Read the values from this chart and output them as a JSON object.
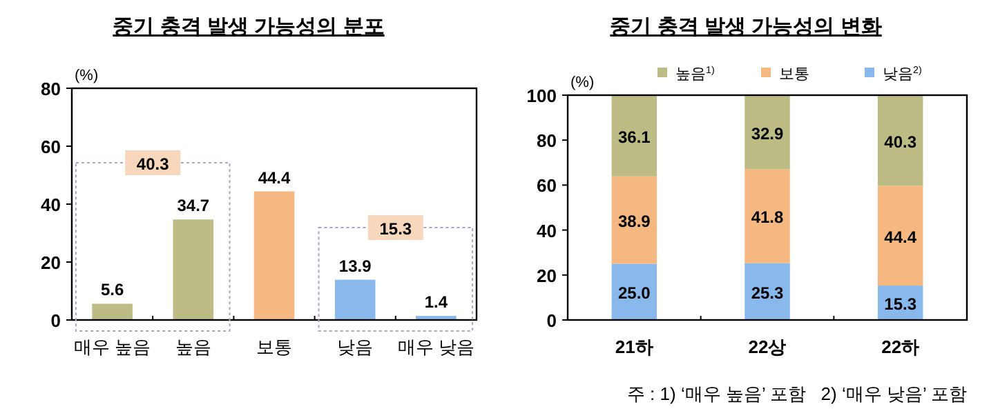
{
  "chart_data": [
    {
      "type": "bar",
      "title": "중기 충격 발생 가능성의 분포",
      "ylabel": "(%)",
      "categories": [
        "매우 높음",
        "높음",
        "보통",
        "낮음",
        "매우 낮음"
      ],
      "values": [
        5.6,
        34.7,
        44.4,
        13.9,
        1.4
      ],
      "colors": [
        "#bcbc84",
        "#bcbc84",
        "#f4b880",
        "#88b8ec",
        "#88b8ec"
      ],
      "ylim": [
        0,
        80
      ],
      "yticks": [
        0,
        20,
        40,
        60,
        80
      ],
      "data_labels": true,
      "annotations": [
        "40.3",
        "15.3"
      ]
    },
    {
      "type": "bar",
      "stacked": true,
      "title": "중기 충격 발생 가능성의 변화",
      "ylabel": "(%)",
      "categories": [
        "21하",
        "22상",
        "22하"
      ],
      "ylim": [
        0,
        100
      ],
      "yticks": [
        0,
        20,
        40,
        60,
        80,
        100
      ],
      "legend": "top",
      "series": [
        {
          "name": "낮음$^{2)}$",
          "color": "#88b8ec",
          "values": [
            25.0,
            25.3,
            15.3
          ],
          "value_labels": [
            "25.0",
            "25.3",
            "15.3"
          ]
        },
        {
          "name": "보통",
          "color": "#f4b880",
          "values": [
            38.9,
            41.8,
            44.4
          ],
          "value_labels": [
            "38.9",
            "41.8",
            "44.4"
          ]
        },
        {
          "name": "높음$^{1)}$",
          "color": "#bcbc84",
          "values": [
            36.1,
            32.9,
            40.3
          ],
          "value_labels": [
            "36.1",
            "32.9",
            "40.3"
          ]
        }
      ],
      "annotations": [
        "주 : 1) ‘매우 높음’ 포함   2) ‘매우 낮음’ 포함"
      ]
    }
  ]
}
